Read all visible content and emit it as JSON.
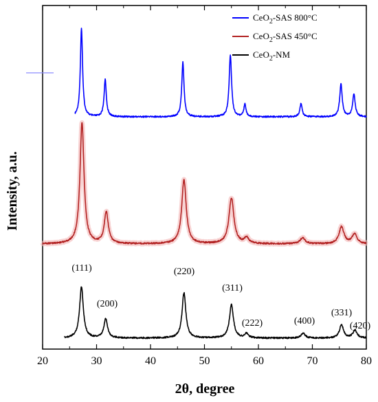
{
  "chart_data": {
    "type": "line",
    "xlabel": "2θ, degree",
    "ylabel": "Intensity, a.u.",
    "xlim": [
      20,
      80
    ],
    "x_ticks": [
      20,
      30,
      40,
      50,
      60,
      70,
      80
    ],
    "y_ticks_labeled": false,
    "grid": false,
    "legend_position": "top-right",
    "legend": [
      {
        "text_main": "CeO",
        "sub": "2",
        "text_after": "-SAS 800°C",
        "color": "#0000ff"
      },
      {
        "text_main": "CeO",
        "sub": "2",
        "text_after": "-SAS 450°C",
        "color": "#b22222"
      },
      {
        "text_main": "CeO",
        "sub": "2",
        "text_after": "-NM",
        "color": "#000000"
      }
    ],
    "peak_labels": [
      {
        "text": "(111)",
        "x": 27.3
      },
      {
        "text": "(200)",
        "x": 31.8
      },
      {
        "text": "(220)",
        "x": 46.2
      },
      {
        "text": "(311)",
        "x": 55.0
      },
      {
        "text": "(222)",
        "x": 57.8
      },
      {
        "text": "(400)",
        "x": 68.2
      },
      {
        "text": "(331)",
        "x": 75.5
      },
      {
        "text": "(420)",
        "x": 78.8
      }
    ],
    "series": [
      {
        "name": "CeO2-SAS 800°C",
        "color": "#0000ff",
        "x_start": 26,
        "x_end": 80,
        "baseline": 0.0,
        "peaks": [
          {
            "x": 27.2,
            "h": 1.0,
            "w": 0.25
          },
          {
            "x": 31.6,
            "h": 0.42,
            "w": 0.25
          },
          {
            "x": 46.0,
            "h": 0.62,
            "w": 0.25
          },
          {
            "x": 54.8,
            "h": 0.7,
            "w": 0.27
          },
          {
            "x": 57.5,
            "h": 0.15,
            "w": 0.22
          },
          {
            "x": 67.9,
            "h": 0.15,
            "w": 0.25
          },
          {
            "x": 75.3,
            "h": 0.37,
            "w": 0.28
          },
          {
            "x": 77.7,
            "h": 0.26,
            "w": 0.28
          }
        ]
      },
      {
        "name": "CeO2-SAS 450°C",
        "color": "#b22222",
        "x_start": 20,
        "x_end": 80,
        "baseline": 0.0,
        "peaks": [
          {
            "x": 27.3,
            "h": 1.0,
            "w": 0.45
          },
          {
            "x": 31.8,
            "h": 0.26,
            "w": 0.45
          },
          {
            "x": 46.2,
            "h": 0.53,
            "w": 0.5
          },
          {
            "x": 55.0,
            "h": 0.38,
            "w": 0.55
          },
          {
            "x": 57.8,
            "h": 0.05,
            "w": 0.45
          },
          {
            "x": 68.2,
            "h": 0.05,
            "w": 0.55
          },
          {
            "x": 75.4,
            "h": 0.14,
            "w": 0.55
          },
          {
            "x": 77.8,
            "h": 0.08,
            "w": 0.55
          }
        ]
      },
      {
        "name": "CeO2-NM",
        "color": "#000000",
        "x_start": 24,
        "x_end": 80,
        "baseline": 0.0,
        "peaks": [
          {
            "x": 27.2,
            "h": 0.85,
            "w": 0.42
          },
          {
            "x": 31.7,
            "h": 0.32,
            "w": 0.4
          },
          {
            "x": 46.2,
            "h": 0.75,
            "w": 0.42
          },
          {
            "x": 55.0,
            "h": 0.55,
            "w": 0.45
          },
          {
            "x": 57.8,
            "h": 0.07,
            "w": 0.4
          },
          {
            "x": 68.3,
            "h": 0.08,
            "w": 0.45
          },
          {
            "x": 75.4,
            "h": 0.22,
            "w": 0.45
          },
          {
            "x": 77.9,
            "h": 0.13,
            "w": 0.45
          }
        ]
      }
    ]
  }
}
